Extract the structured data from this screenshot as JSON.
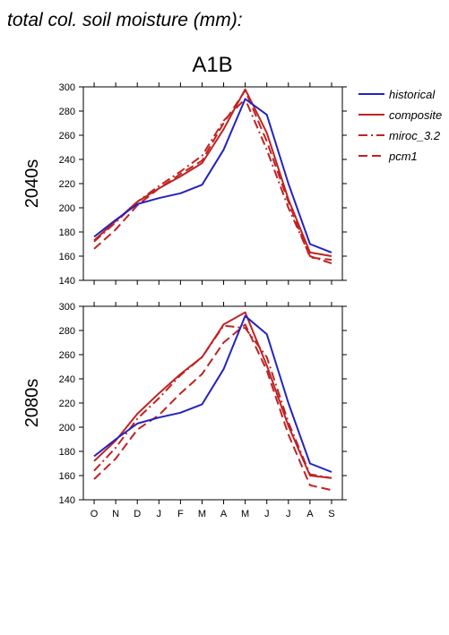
{
  "figure_title": "total col. soil moisture (mm):",
  "panel_title": "A1B",
  "row_labels": [
    "2040s",
    "2080s"
  ],
  "colors": {
    "historical": "#2323bf",
    "projection": "#bf2323",
    "axis": "#000000"
  },
  "legend": [
    {
      "name": "historical",
      "dash": "solid",
      "color": "#2323bf"
    },
    {
      "name": "composite",
      "dash": "solid",
      "color": "#bf2323"
    },
    {
      "name": "miroc_3.2",
      "dash": "dashdot",
      "color": "#bf2323"
    },
    {
      "name": "pcm1",
      "dash": "dash",
      "color": "#bf2323"
    }
  ],
  "chart_data": [
    {
      "type": "line",
      "panel": "2040s",
      "categories": [
        "O",
        "N",
        "D",
        "J",
        "F",
        "M",
        "A",
        "M",
        "J",
        "J",
        "A",
        "S"
      ],
      "ylim": [
        140,
        300
      ],
      "yticks": [
        140,
        160,
        180,
        200,
        220,
        240,
        260,
        280,
        300
      ],
      "series": [
        {
          "name": "historical",
          "values": [
            176,
            190,
            203,
            208,
            212,
            219,
            248,
            290,
            277,
            220,
            170,
            163
          ]
        },
        {
          "name": "composite",
          "values": [
            173,
            189,
            205,
            216,
            226,
            237,
            265,
            298,
            262,
            207,
            163,
            160
          ]
        },
        {
          "name": "miroc_3.2",
          "values": [
            172,
            188,
            205,
            218,
            230,
            243,
            272,
            290,
            248,
            200,
            160,
            154
          ]
        },
        {
          "name": "pcm1",
          "values": [
            166,
            182,
            202,
            216,
            228,
            239,
            270,
            297,
            255,
            205,
            159,
            157
          ]
        }
      ]
    },
    {
      "type": "line",
      "panel": "2080s",
      "categories": [
        "O",
        "N",
        "D",
        "J",
        "F",
        "M",
        "A",
        "M",
        "J",
        "J",
        "A",
        "S"
      ],
      "ylim": [
        140,
        300
      ],
      "yticks": [
        140,
        160,
        180,
        200,
        220,
        240,
        260,
        280,
        300
      ],
      "series": [
        {
          "name": "historical",
          "values": [
            176,
            190,
            203,
            208,
            212,
            219,
            248,
            292,
            277,
            220,
            170,
            163
          ]
        },
        {
          "name": "composite",
          "values": [
            172,
            189,
            211,
            228,
            244,
            258,
            285,
            295,
            251,
            201,
            160,
            158
          ]
        },
        {
          "name": "miroc_3.2",
          "values": [
            164,
            183,
            207,
            224,
            243,
            258,
            284,
            282,
            258,
            204,
            161,
            158
          ]
        },
        {
          "name": "pcm1",
          "values": [
            157,
            174,
            198,
            210,
            228,
            244,
            270,
            285,
            247,
            194,
            152,
            148
          ]
        }
      ]
    }
  ]
}
